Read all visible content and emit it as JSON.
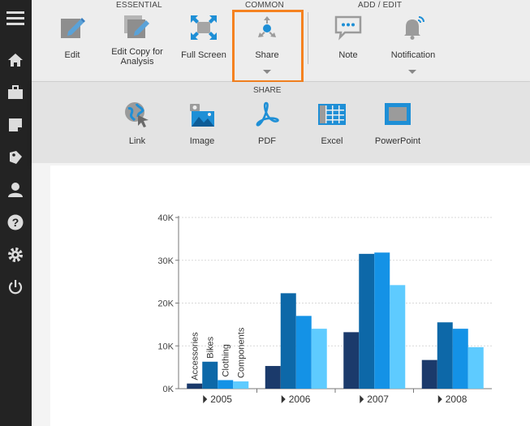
{
  "sidebar": {
    "icons": [
      "menu-icon",
      "home-icon",
      "briefcase-icon",
      "note-icon",
      "tag-icon",
      "user-icon",
      "help-icon",
      "gear-icon",
      "power-icon"
    ]
  },
  "toolbar": {
    "groups": {
      "essential": "ESSENTIAL",
      "common": "COMMON",
      "add_edit": "ADD / EDIT"
    },
    "edit_label": "Edit",
    "edit_copy_label_1": "Edit Copy for",
    "edit_copy_label_2": "Analysis",
    "fullscreen_label": "Full Screen",
    "share_label": "Share",
    "note_label": "Note",
    "notification_label": "Notification",
    "highlight_color": "#f58220"
  },
  "share": {
    "title": "SHARE",
    "link_label": "Link",
    "image_label": "Image",
    "pdf_label": "PDF",
    "excel_label": "Excel",
    "powerpoint_label": "PowerPoint"
  },
  "chart_data": {
    "type": "bar",
    "categories": [
      "2005",
      "2006",
      "2007",
      "2008"
    ],
    "series": [
      {
        "name": "Accessories",
        "color": "#1b3a6b",
        "values": [
          1200,
          5300,
          13200,
          6700
        ]
      },
      {
        "name": "Bikes",
        "color": "#0d68a8",
        "values": [
          6300,
          22300,
          31500,
          15500
        ]
      },
      {
        "name": "Clothing",
        "color": "#1492e6",
        "values": [
          2000,
          17000,
          31800,
          14000
        ]
      },
      {
        "name": "Components",
        "color": "#5ecbff",
        "values": [
          1700,
          14000,
          24200,
          9700
        ]
      }
    ],
    "ylim": [
      0,
      40000
    ],
    "yticks": [
      "0K",
      "10K",
      "20K",
      "30K",
      "40K"
    ],
    "grid": true
  }
}
